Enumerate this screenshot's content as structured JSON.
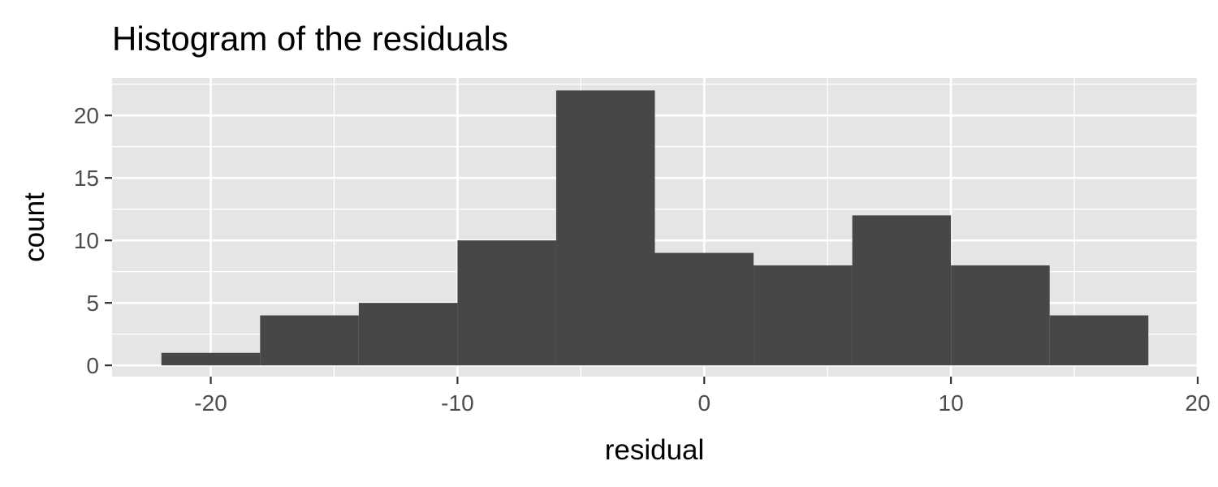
{
  "chart_data": {
    "type": "histogram",
    "title": "Histogram of the residuals",
    "xlabel": "residual",
    "ylabel": "count",
    "xlim": [
      -24,
      20
    ],
    "ylim": [
      0,
      23
    ],
    "x_ticks": [
      -20,
      -10,
      0,
      10,
      20
    ],
    "x_tick_labels": [
      "-20",
      "-10",
      "0",
      "10",
      "20"
    ],
    "y_ticks": [
      0,
      5,
      10,
      15,
      20
    ],
    "y_tick_labels": [
      "0",
      "5",
      "10",
      "15",
      "20"
    ],
    "grid": true,
    "bins": [
      {
        "x0": -22,
        "x1": -18,
        "count": 1
      },
      {
        "x0": -18,
        "x1": -14,
        "count": 4
      },
      {
        "x0": -14,
        "x1": -10,
        "count": 5
      },
      {
        "x0": -10,
        "x1": -6,
        "count": 10
      },
      {
        "x0": -6,
        "x1": -2,
        "count": 22
      },
      {
        "x0": -2,
        "x1": 2,
        "count": 9
      },
      {
        "x0": 2,
        "x1": 6,
        "count": 8
      },
      {
        "x0": 6,
        "x1": 10,
        "count": 12
      },
      {
        "x0": 10,
        "x1": 14,
        "count": 8
      },
      {
        "x0": 14,
        "x1": 18,
        "count": 4
      }
    ],
    "colors": {
      "panel_background": "#e5e5e5",
      "grid_line": "#ffffff",
      "bar_fill": "#474747",
      "tick_color": "#333333"
    }
  }
}
